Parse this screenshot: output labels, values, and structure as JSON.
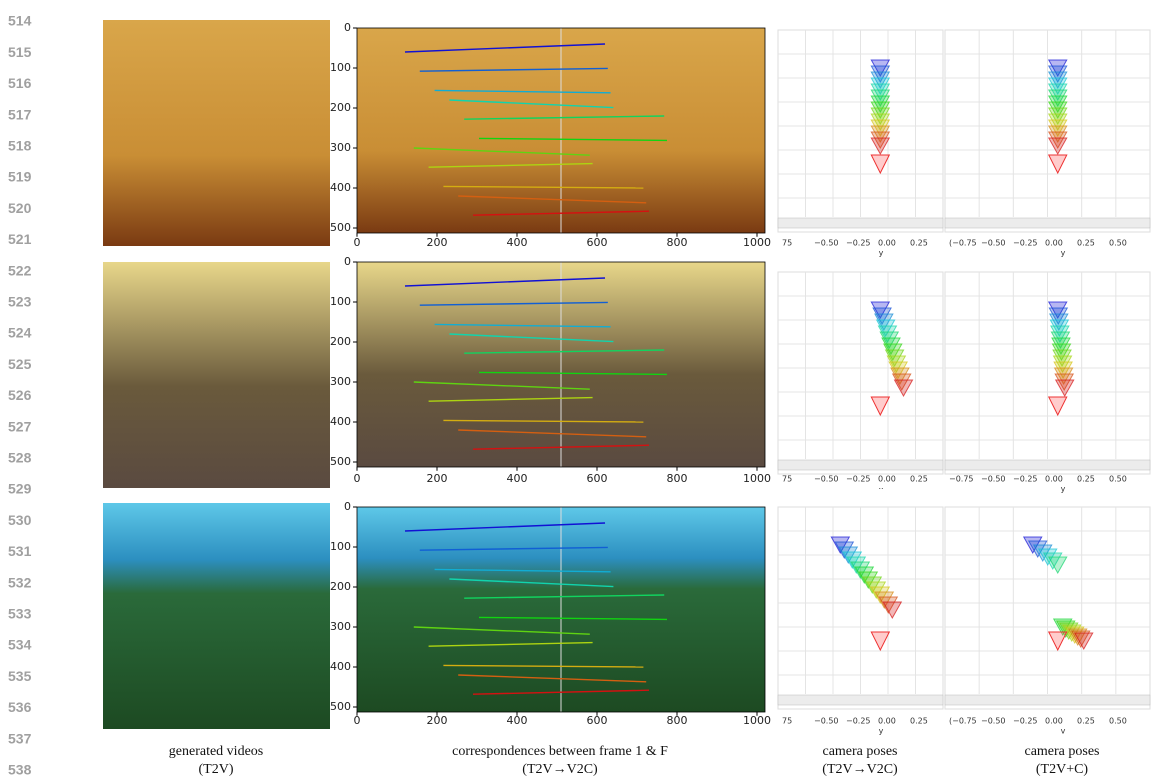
{
  "line_numbers": [
    "514",
    "515",
    "516",
    "517",
    "518",
    "519",
    "520",
    "521",
    "522",
    "523",
    "524",
    "525",
    "526",
    "527",
    "528",
    "529",
    "530",
    "531",
    "532",
    "533",
    "534",
    "535",
    "536",
    "537",
    "538"
  ],
  "correspondence_axes": {
    "xticks": [
      0,
      200,
      400,
      600,
      800,
      1000
    ],
    "yticks": [
      0,
      100,
      200,
      300,
      400,
      500
    ]
  },
  "pose_rows": [
    {
      "left_ticks": [
        "75",
        "−0.50",
        "−0.25",
        "0.00",
        "0.25"
      ],
      "left_axis": "y",
      "right_ticks": [
        "(−0.75",
        "−0.50",
        "−0.25",
        "0.00",
        "0.25",
        "0.50"
      ],
      "right_axis": "y"
    },
    {
      "left_ticks": [
        "75",
        "−0.50",
        "−0.25",
        "0.00",
        "0.25"
      ],
      "left_axis": "··",
      "right_ticks": [
        "−0.75",
        "−0.50",
        "−0.25",
        "0.00",
        "0.25",
        "0.50"
      ],
      "right_axis": "y"
    },
    {
      "left_ticks": [
        "75",
        "−0.50",
        "−0.25",
        "0.00",
        "0.25"
      ],
      "left_axis": "y",
      "right_ticks": [
        "(−0.75",
        "−0.50",
        "−0.25",
        "0.00",
        "0.25",
        "0.50"
      ],
      "right_axis": "v"
    }
  ],
  "captions": [
    {
      "line1": "generated videos",
      "line2": "(T2V)"
    },
    {
      "line1": "correspondences between frame 1 & F",
      "line2": "(T2V→V2C)"
    },
    {
      "line1": "camera poses",
      "line2": "(T2V→V2C)"
    },
    {
      "line1": "camera poses",
      "line2": "(T2V+C)"
    }
  ]
}
